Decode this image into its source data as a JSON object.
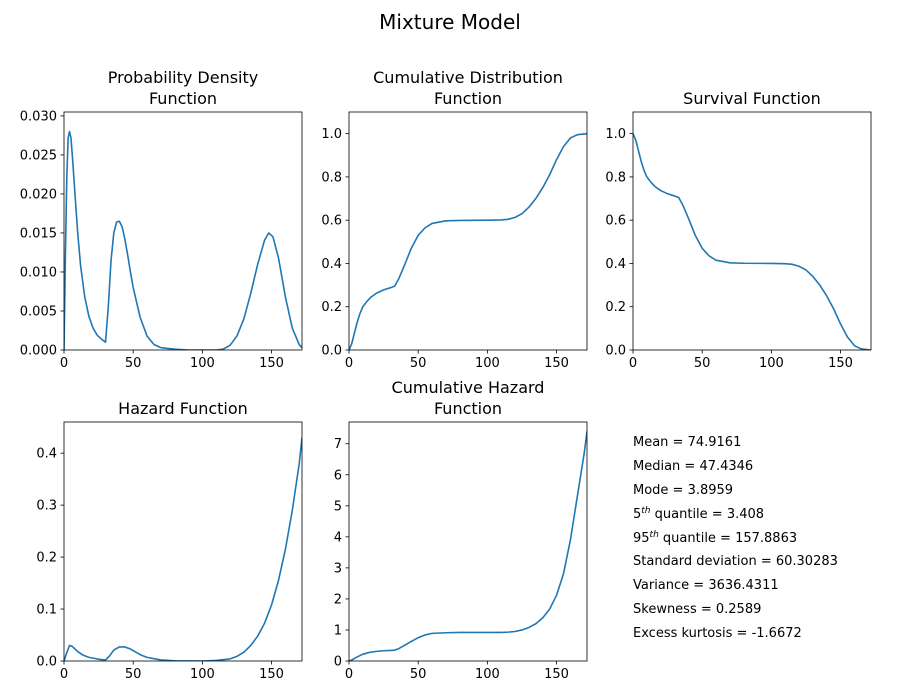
{
  "suptitle": "Mixture Model",
  "colors": {
    "line": "#1f77b4",
    "axis": "#000000"
  },
  "chart_data": [
    {
      "id": "pdf",
      "type": "line",
      "title": [
        "Probability Density",
        "Function"
      ],
      "xlim": [
        0,
        172
      ],
      "ylim": [
        0,
        0.0305
      ],
      "xticks": [
        0,
        50,
        100,
        150
      ],
      "yticks": [
        0,
        0.005,
        0.01,
        0.015,
        0.02,
        0.025,
        0.03
      ],
      "ytick_labels": [
        "0.000",
        "0.005",
        "0.010",
        "0.015",
        "0.020",
        "0.025",
        "0.030"
      ],
      "series": [
        {
          "x": [
            0,
            1,
            2,
            3,
            4,
            5,
            6,
            8,
            10,
            12,
            15,
            18,
            21,
            24,
            27,
            30,
            32,
            34,
            36,
            38,
            40,
            42,
            44,
            46,
            48,
            50,
            55,
            60,
            65,
            70,
            80,
            90,
            100,
            110,
            115,
            120,
            125,
            130,
            135,
            140,
            145,
            148,
            151,
            155,
            160,
            165,
            170,
            172
          ],
          "y": [
            0,
            0.012,
            0.022,
            0.0272,
            0.028,
            0.0272,
            0.025,
            0.0198,
            0.0148,
            0.0108,
            0.0068,
            0.0043,
            0.0028,
            0.0019,
            0.0014,
            0.001,
            0.0055,
            0.0115,
            0.015,
            0.0164,
            0.0165,
            0.0158,
            0.0142,
            0.0122,
            0.01,
            0.008,
            0.0042,
            0.0018,
            0.0007,
            0.0003,
            0.0001,
            0,
            0,
            0,
            0.0001,
            0.0006,
            0.0018,
            0.004,
            0.0073,
            0.011,
            0.0141,
            0.015,
            0.0145,
            0.0118,
            0.0068,
            0.0028,
            0.0007,
            0.0003
          ]
        }
      ]
    },
    {
      "id": "cdf",
      "type": "line",
      "title": [
        "Cumulative Distribution",
        "Function"
      ],
      "xlim": [
        0,
        172
      ],
      "ylim": [
        0,
        1.1
      ],
      "xticks": [
        0,
        50,
        100,
        150
      ],
      "yticks": [
        0,
        0.2,
        0.4,
        0.6,
        0.8,
        1.0
      ],
      "ytick_labels": [
        "0.0",
        "0.2",
        "0.4",
        "0.6",
        "0.8",
        "1.0"
      ],
      "series": [
        {
          "x": [
            0,
            2,
            4,
            6,
            8,
            10,
            13,
            16,
            20,
            25,
            30,
            33,
            36,
            40,
            45,
            50,
            55,
            60,
            70,
            80,
            100,
            110,
            115,
            120,
            125,
            130,
            135,
            140,
            145,
            150,
            155,
            160,
            165,
            172
          ],
          "y": [
            0,
            0.03,
            0.08,
            0.13,
            0.17,
            0.2,
            0.225,
            0.245,
            0.263,
            0.278,
            0.288,
            0.295,
            0.33,
            0.39,
            0.47,
            0.53,
            0.565,
            0.585,
            0.597,
            0.599,
            0.6,
            0.601,
            0.604,
            0.613,
            0.63,
            0.66,
            0.7,
            0.75,
            0.81,
            0.88,
            0.94,
            0.98,
            0.995,
            1.0
          ]
        }
      ]
    },
    {
      "id": "sf",
      "type": "line",
      "title": [
        "Survival Function"
      ],
      "xlim": [
        0,
        172
      ],
      "ylim": [
        0,
        1.1
      ],
      "xticks": [
        0,
        50,
        100,
        150
      ],
      "yticks": [
        0,
        0.2,
        0.4,
        0.6,
        0.8,
        1.0
      ],
      "ytick_labels": [
        "0.0",
        "0.2",
        "0.4",
        "0.6",
        "0.8",
        "1.0"
      ],
      "series": [
        {
          "x": [
            0,
            2,
            4,
            6,
            8,
            10,
            13,
            16,
            20,
            25,
            30,
            33,
            36,
            40,
            45,
            50,
            55,
            60,
            70,
            80,
            100,
            110,
            115,
            120,
            125,
            130,
            135,
            140,
            145,
            150,
            155,
            160,
            165,
            172
          ],
          "y": [
            1.0,
            0.97,
            0.92,
            0.87,
            0.83,
            0.8,
            0.775,
            0.755,
            0.737,
            0.722,
            0.712,
            0.705,
            0.67,
            0.61,
            0.53,
            0.47,
            0.435,
            0.415,
            0.403,
            0.401,
            0.4,
            0.399,
            0.396,
            0.387,
            0.37,
            0.34,
            0.3,
            0.25,
            0.19,
            0.12,
            0.06,
            0.02,
            0.005,
            0
          ]
        }
      ]
    },
    {
      "id": "hf",
      "type": "line",
      "title": [
        "Hazard Function"
      ],
      "xlim": [
        0,
        172
      ],
      "ylim": [
        0,
        0.46
      ],
      "xticks": [
        0,
        50,
        100,
        150
      ],
      "yticks": [
        0,
        0.1,
        0.2,
        0.3,
        0.4
      ],
      "ytick_labels": [
        "0.0",
        "0.1",
        "0.2",
        "0.3",
        "0.4"
      ],
      "series": [
        {
          "x": [
            0,
            2,
            4,
            6,
            8,
            10,
            14,
            18,
            22,
            26,
            30,
            33,
            36,
            40,
            44,
            48,
            52,
            56,
            60,
            70,
            80,
            100,
            110,
            120,
            125,
            130,
            135,
            140,
            145,
            150,
            155,
            160,
            165,
            170,
            172
          ],
          "y": [
            0,
            0.016,
            0.03,
            0.028,
            0.023,
            0.018,
            0.011,
            0.007,
            0.005,
            0.003,
            0.002,
            0.01,
            0.021,
            0.027,
            0.027,
            0.023,
            0.017,
            0.011,
            0.007,
            0.002,
            0.0005,
            0,
            0.001,
            0.004,
            0.009,
            0.017,
            0.03,
            0.048,
            0.073,
            0.108,
            0.155,
            0.215,
            0.29,
            0.38,
            0.43
          ]
        }
      ]
    },
    {
      "id": "chf",
      "type": "line",
      "title": [
        "Cumulative Hazard",
        "Function"
      ],
      "xlim": [
        0,
        172
      ],
      "ylim": [
        0,
        7.7
      ],
      "xticks": [
        0,
        50,
        100,
        150
      ],
      "yticks": [
        0,
        1,
        2,
        3,
        4,
        5,
        6,
        7
      ],
      "ytick_labels": [
        "0",
        "1",
        "2",
        "3",
        "4",
        "5",
        "6",
        "7"
      ],
      "series": [
        {
          "x": [
            0,
            2,
            5,
            10,
            15,
            20,
            25,
            30,
            33,
            36,
            40,
            45,
            50,
            55,
            60,
            70,
            80,
            100,
            110,
            115,
            120,
            125,
            130,
            135,
            140,
            145,
            150,
            155,
            160,
            165,
            170,
            172
          ],
          "y": [
            0,
            0.03,
            0.11,
            0.22,
            0.28,
            0.31,
            0.33,
            0.34,
            0.35,
            0.4,
            0.5,
            0.63,
            0.75,
            0.84,
            0.89,
            0.91,
            0.92,
            0.92,
            0.92,
            0.93,
            0.95,
            1.0,
            1.08,
            1.2,
            1.39,
            1.67,
            2.12,
            2.81,
            3.9,
            5.3,
            6.7,
            7.4
          ]
        }
      ]
    }
  ],
  "stats": {
    "mean": "Mean = 74.9161",
    "median": "Median = 47.4346",
    "mode": "Mode = 3.8959",
    "q5_pre": "5",
    "q5_sup": "th",
    "q5_post": " quantile = 3.408",
    "q95_pre": "95",
    "q95_sup": "th",
    "q95_post": " quantile = 157.8863",
    "std": "Standard deviation = 60.30283",
    "variance": "Variance = 3636.4311",
    "skewness": "Skewness = 0.2589",
    "kurtosis": "Excess kurtosis = -1.6672"
  }
}
